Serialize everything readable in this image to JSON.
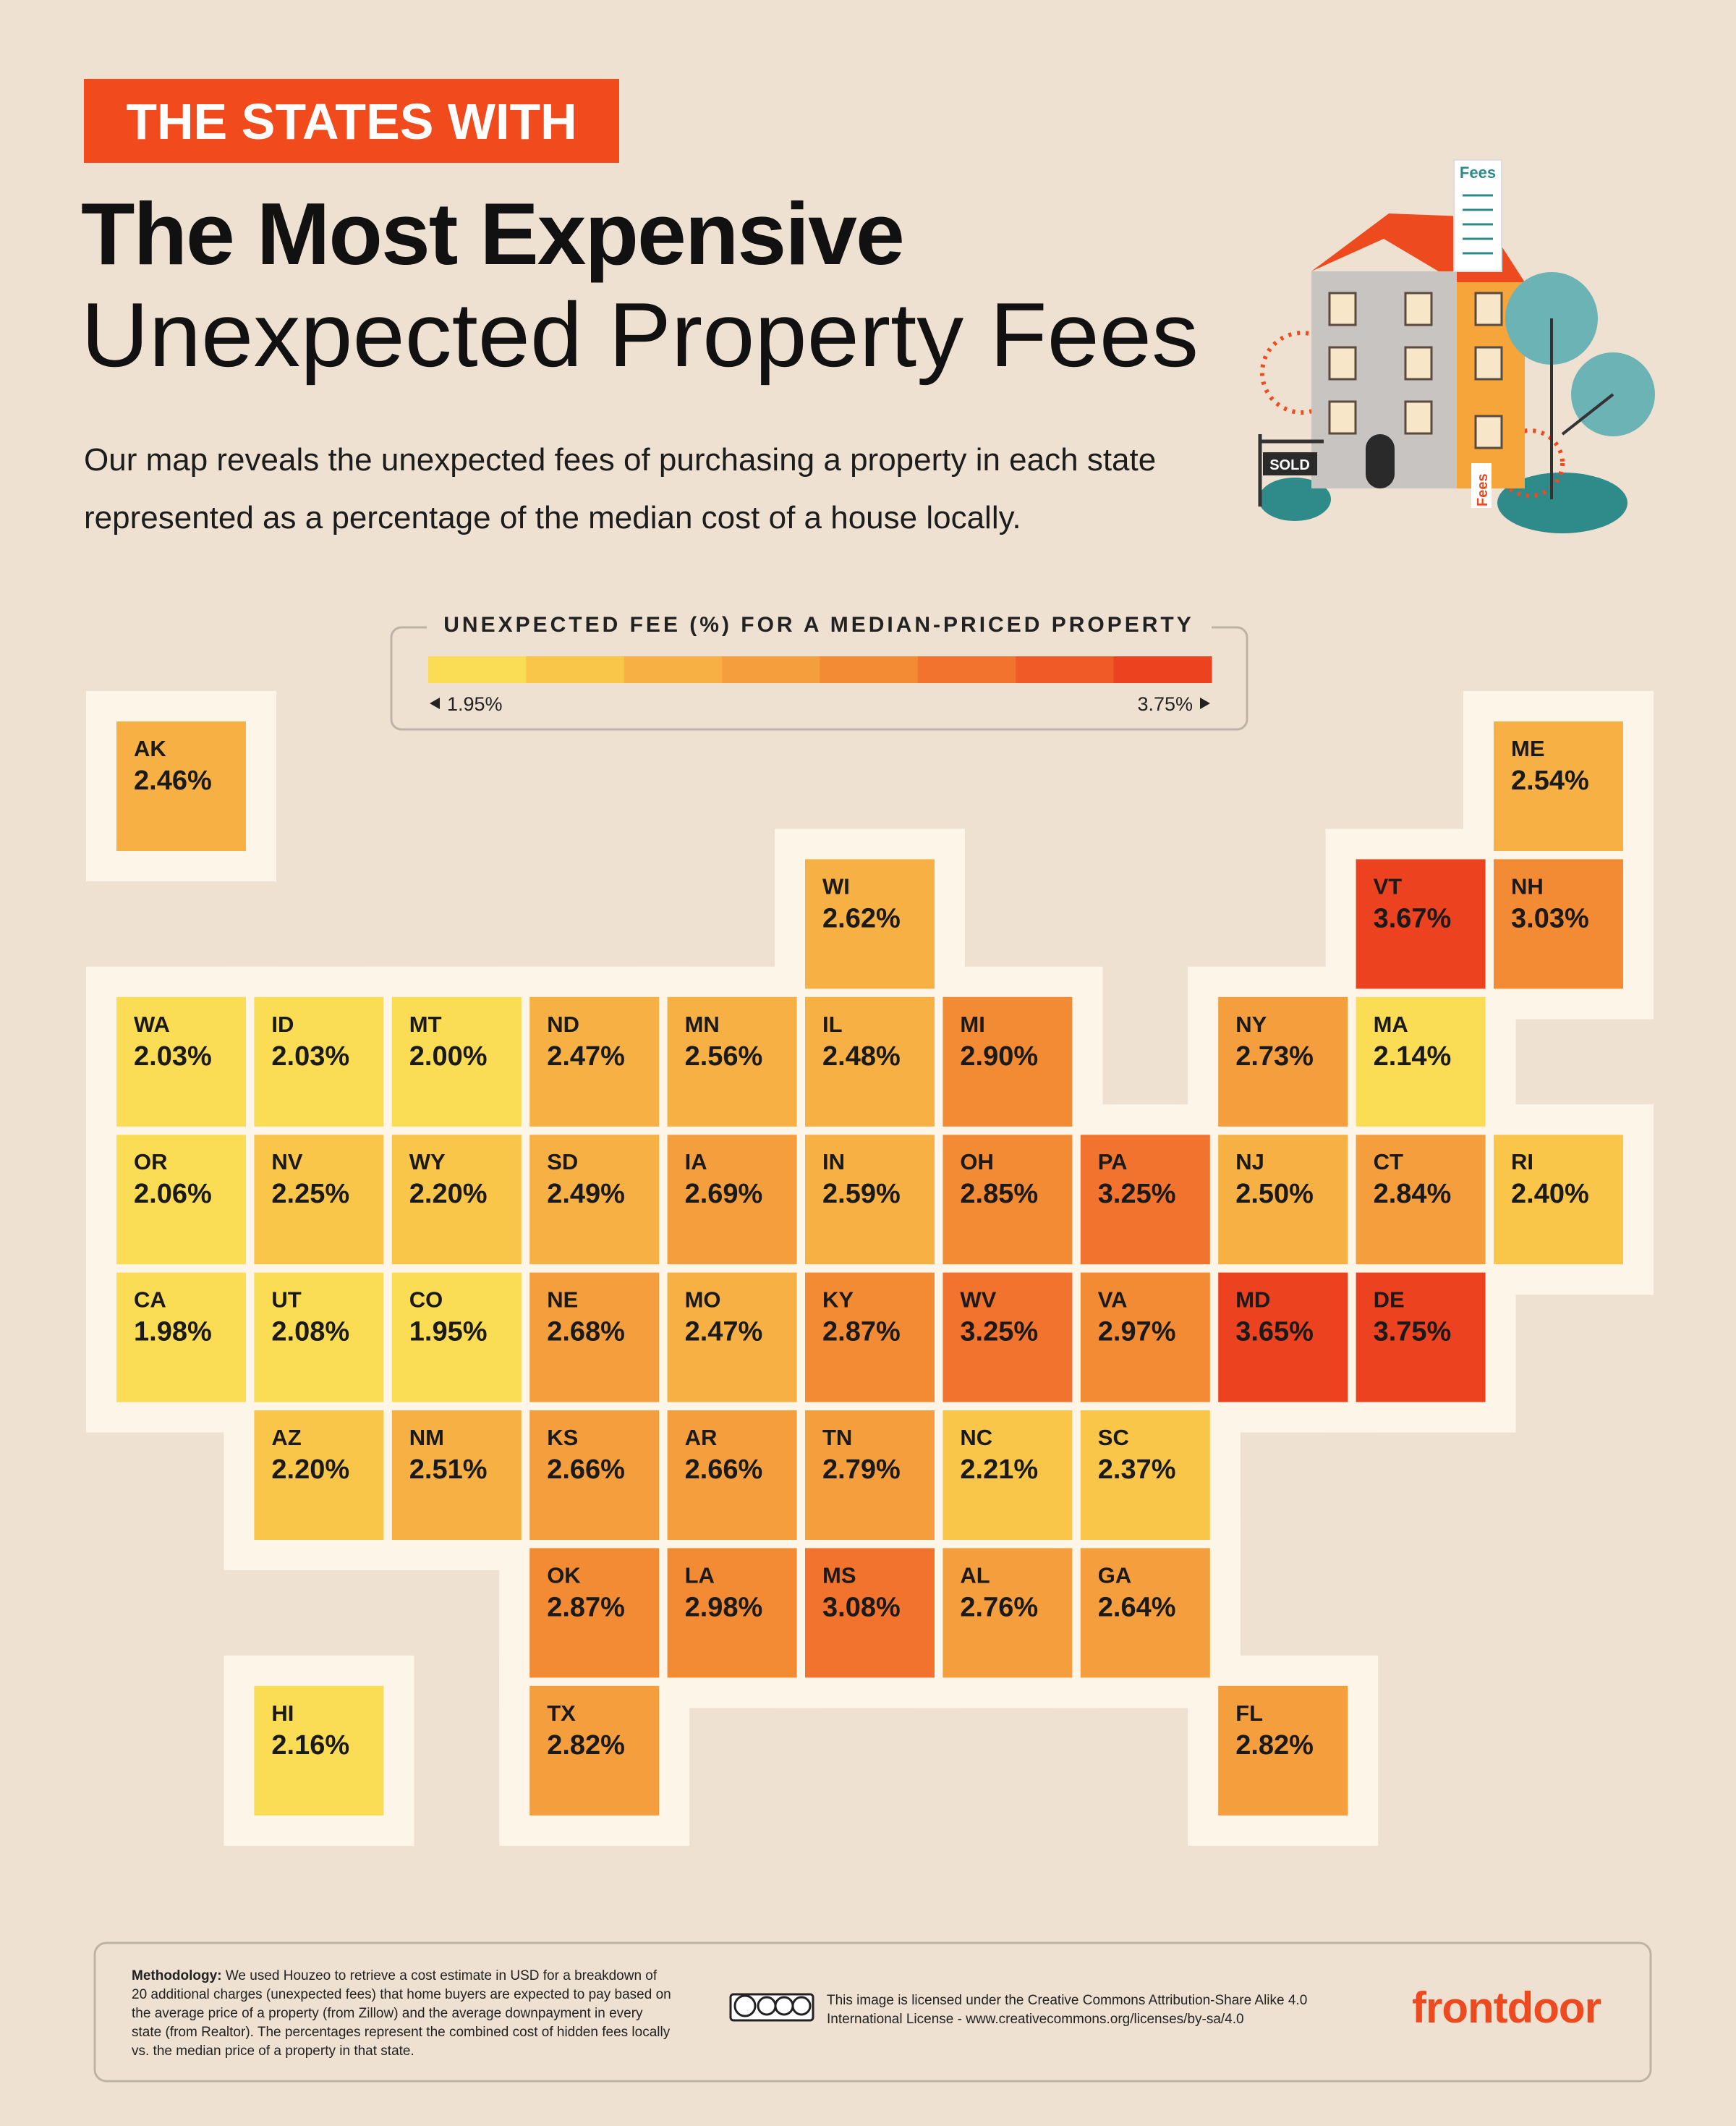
{
  "header": {
    "kicker": "THE STATES WITH",
    "title_bold": "The Most Expensive",
    "title_light": "Unexpected Property Fees",
    "description": "Our map reveals the unexpected fees of purchasing a property in each state represented as a percentage of the median cost of a house locally."
  },
  "illustration": {
    "labels": [
      "Fees",
      "SOLD",
      "Fees"
    ]
  },
  "chart_data": {
    "type": "tilemap",
    "categories": [
      "AK",
      "ME",
      "WI",
      "VT",
      "NH",
      "WA",
      "ID",
      "MT",
      "ND",
      "MN",
      "IL",
      "MI",
      "NY",
      "MA",
      "OR",
      "NV",
      "WY",
      "SD",
      "IA",
      "IN",
      "OH",
      "PA",
      "NJ",
      "CT",
      "RI",
      "CA",
      "UT",
      "CO",
      "NE",
      "MO",
      "KY",
      "WV",
      "VA",
      "MD",
      "DE",
      "AZ",
      "NM",
      "KS",
      "AR",
      "TN",
      "NC",
      "SC",
      "OK",
      "LA",
      "MS",
      "AL",
      "GA",
      "HI",
      "TX",
      "FL"
    ],
    "values": [
      2.46,
      2.54,
      2.62,
      3.67,
      3.03,
      2.03,
      2.03,
      2.0,
      2.47,
      2.56,
      2.48,
      2.9,
      2.73,
      2.14,
      2.06,
      2.25,
      2.2,
      2.49,
      2.69,
      2.59,
      2.85,
      3.25,
      2.5,
      2.84,
      2.4,
      1.98,
      2.08,
      1.95,
      2.68,
      2.47,
      2.87,
      3.25,
      2.97,
      3.65,
      3.75,
      2.2,
      2.51,
      2.66,
      2.66,
      2.79,
      2.21,
      2.37,
      2.87,
      2.98,
      3.08,
      2.76,
      2.64,
      2.16,
      2.82,
      2.82
    ],
    "value_labels": [
      "2.46%",
      "2.54%",
      "2.62%",
      "3.67%",
      "3.03%",
      "2.03%",
      "2.03%",
      "2.00%",
      "2.47%",
      "2.56%",
      "2.48%",
      "2.90%",
      "2.73%",
      "2.14%",
      "2.06%",
      "2.25%",
      "2.20%",
      "2.49%",
      "2.69%",
      "2.59%",
      "2.85%",
      "3.25%",
      "2.50%",
      "2.84%",
      "2.40%",
      "1.98%",
      "2.08%",
      "1.95%",
      "2.68%",
      "2.47%",
      "2.87%",
      "3.25%",
      "2.97%",
      "3.65%",
      "3.75%",
      "2.20%",
      "2.51%",
      "2.66%",
      "2.66%",
      "2.79%",
      "2.21%",
      "2.37%",
      "2.87%",
      "2.98%",
      "3.08%",
      "2.76%",
      "2.64%",
      "2.16%",
      "2.82%",
      "2.82%"
    ],
    "legend": {
      "title": "UNEXPECTED FEE (%) FOR A MEDIAN-PRICED PROPERTY",
      "colorlim": [
        1.95,
        3.75
      ],
      "ticks": [
        {
          "value": 1.95,
          "label": "1.95%"
        },
        {
          "value": 3.75,
          "label": "3.75%"
        }
      ],
      "colors": [
        "#fbdc55",
        "#f9c64a",
        "#f7b043",
        "#f59e3d",
        "#f38b35",
        "#f2732e",
        "#f05a27",
        "#ed4220"
      ]
    }
  },
  "footer": {
    "methodology_label": "Methodology:",
    "methodology": "We used Houzeo to retrieve a cost estimate in USD for a breakdown of 20 additional charges (unexpected fees) that home buyers are expected to pay based on the average price of a property (from Zillow) and the average downpayment in every state (from Realtor). The percentages represent the combined cost of hidden fees locally vs. the median price of a property in that state.",
    "license": "This image is licensed under the Creative Commons Attribution-Share Alike 4.0 International License - www.creativecommons.org/licenses/by-sa/4.0",
    "brand": "frontdoor"
  }
}
